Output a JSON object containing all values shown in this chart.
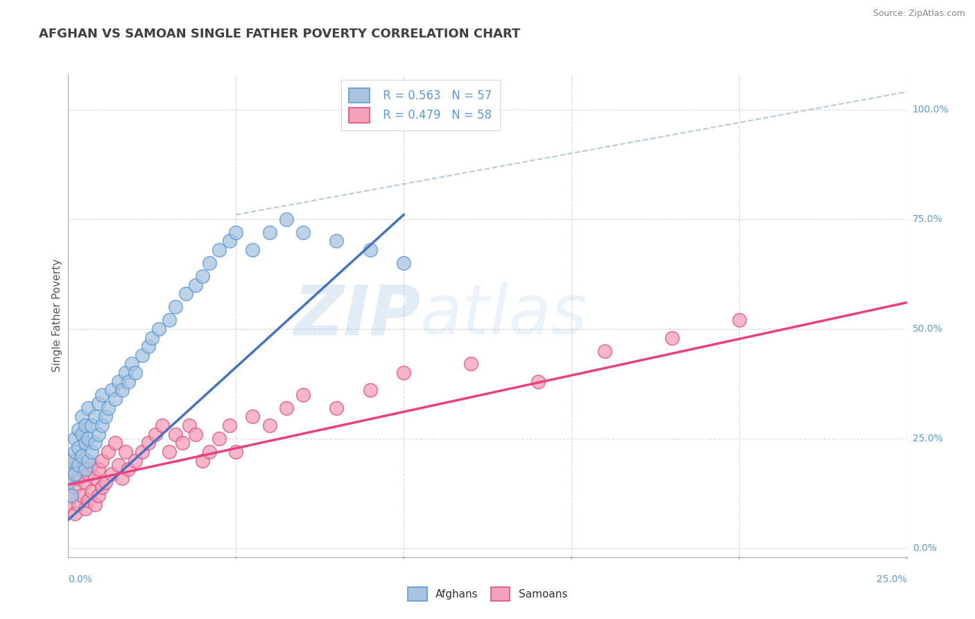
{
  "title": "AFGHAN VS SAMOAN SINGLE FATHER POVERTY CORRELATION CHART",
  "source": "Source: ZipAtlas.com",
  "ylabel": "Single Father Poverty",
  "ytick_labels": [
    "0.0%",
    "25.0%",
    "50.0%",
    "75.0%",
    "100.0%"
  ],
  "ytick_vals": [
    0.0,
    0.25,
    0.5,
    0.75,
    1.0
  ],
  "xtick_labels": [
    "0.0%",
    "25.0%"
  ],
  "xlim": [
    0.0,
    0.25
  ],
  "ylim": [
    -0.02,
    1.08
  ],
  "watermark_zip": "ZIP",
  "watermark_atlas": "atlas",
  "legend_r1": "R = 0.563",
  "legend_n1": "N = 57",
  "legend_r2": "R = 0.479",
  "legend_n2": "N = 58",
  "afghan_fill": "#a8c4e0",
  "afghan_edge": "#5b9bd5",
  "samoan_fill": "#f4a0b8",
  "samoan_edge": "#e05080",
  "afghan_line": "#4472c4",
  "samoan_line": "#e84080",
  "ref_line_color": "#b0c4d8",
  "background": "#ffffff",
  "grid_color": "#d0d8e0",
  "title_color": "#404040",
  "axis_label_color": "#5b9bd5",
  "legend_text_color": "#5b9bd5",
  "afghan_x": [
    0.0,
    0.001,
    0.001,
    0.001,
    0.002,
    0.002,
    0.002,
    0.003,
    0.003,
    0.003,
    0.004,
    0.004,
    0.004,
    0.005,
    0.005,
    0.005,
    0.006,
    0.006,
    0.006,
    0.007,
    0.007,
    0.008,
    0.008,
    0.009,
    0.009,
    0.01,
    0.01,
    0.011,
    0.012,
    0.013,
    0.014,
    0.015,
    0.016,
    0.017,
    0.018,
    0.019,
    0.02,
    0.022,
    0.024,
    0.025,
    0.027,
    0.03,
    0.032,
    0.035,
    0.038,
    0.04,
    0.042,
    0.045,
    0.048,
    0.05,
    0.055,
    0.06,
    0.065,
    0.07,
    0.08,
    0.09,
    0.1
  ],
  "afghan_y": [
    0.15,
    0.12,
    0.18,
    0.2,
    0.17,
    0.22,
    0.25,
    0.19,
    0.23,
    0.27,
    0.21,
    0.26,
    0.3,
    0.18,
    0.24,
    0.28,
    0.2,
    0.25,
    0.32,
    0.22,
    0.28,
    0.24,
    0.3,
    0.26,
    0.33,
    0.28,
    0.35,
    0.3,
    0.32,
    0.36,
    0.34,
    0.38,
    0.36,
    0.4,
    0.38,
    0.42,
    0.4,
    0.44,
    0.46,
    0.48,
    0.5,
    0.52,
    0.55,
    0.58,
    0.6,
    0.62,
    0.65,
    0.68,
    0.7,
    0.72,
    0.68,
    0.72,
    0.75,
    0.72,
    0.7,
    0.68,
    0.65
  ],
  "samoan_x": [
    0.0,
    0.0,
    0.001,
    0.001,
    0.002,
    0.002,
    0.002,
    0.003,
    0.003,
    0.004,
    0.004,
    0.005,
    0.005,
    0.006,
    0.006,
    0.007,
    0.007,
    0.008,
    0.008,
    0.009,
    0.009,
    0.01,
    0.01,
    0.011,
    0.012,
    0.013,
    0.014,
    0.015,
    0.016,
    0.017,
    0.018,
    0.02,
    0.022,
    0.024,
    0.026,
    0.028,
    0.03,
    0.032,
    0.034,
    0.036,
    0.038,
    0.04,
    0.042,
    0.045,
    0.048,
    0.05,
    0.055,
    0.06,
    0.065,
    0.07,
    0.08,
    0.09,
    0.1,
    0.12,
    0.14,
    0.16,
    0.18,
    0.2
  ],
  "samoan_y": [
    0.1,
    0.15,
    0.12,
    0.18,
    0.08,
    0.14,
    0.2,
    0.1,
    0.16,
    0.12,
    0.18,
    0.09,
    0.15,
    0.11,
    0.17,
    0.13,
    0.19,
    0.1,
    0.16,
    0.12,
    0.18,
    0.14,
    0.2,
    0.15,
    0.22,
    0.17,
    0.24,
    0.19,
    0.16,
    0.22,
    0.18,
    0.2,
    0.22,
    0.24,
    0.26,
    0.28,
    0.22,
    0.26,
    0.24,
    0.28,
    0.26,
    0.2,
    0.22,
    0.25,
    0.28,
    0.22,
    0.3,
    0.28,
    0.32,
    0.35,
    0.32,
    0.36,
    0.4,
    0.42,
    0.38,
    0.45,
    0.48,
    0.52
  ],
  "afghan_line_x": [
    0.0,
    0.1
  ],
  "afghan_line_y": [
    0.065,
    0.76
  ],
  "samoan_line_x": [
    0.0,
    0.25
  ],
  "samoan_line_y": [
    0.145,
    0.56
  ],
  "ref_line_x": [
    0.05,
    0.25
  ],
  "ref_line_y": [
    0.76,
    1.04
  ]
}
